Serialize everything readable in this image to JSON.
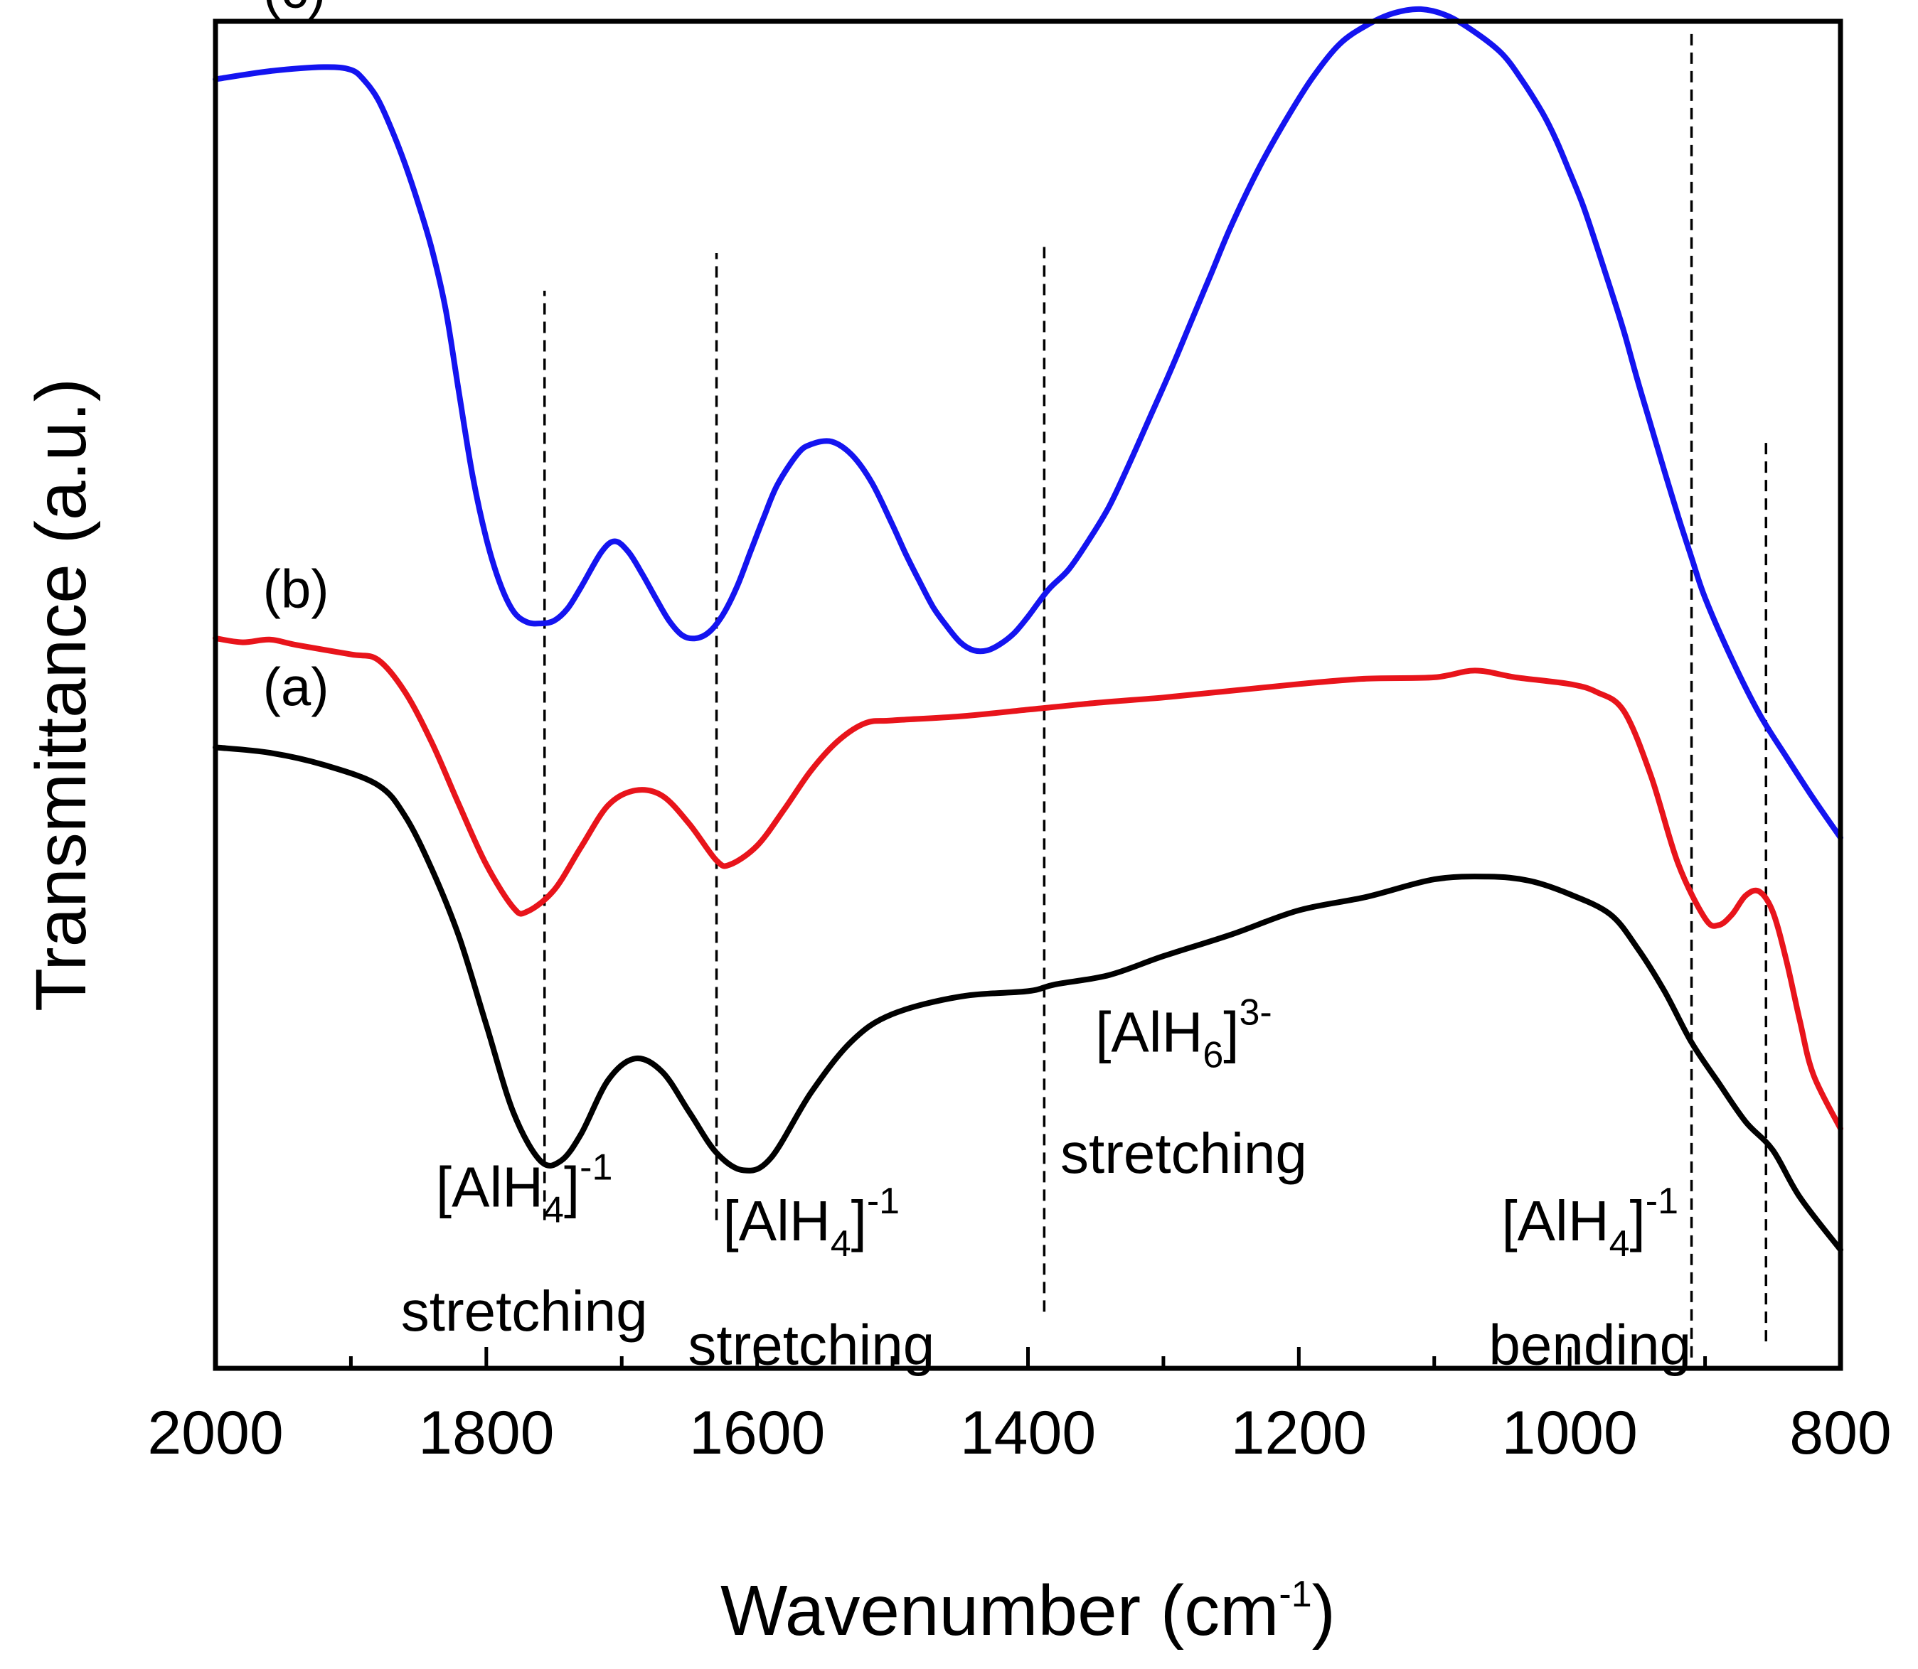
{
  "chart_data": {
    "type": "line",
    "title": "",
    "xlabel": "Wavenumber (cm",
    "xlabel_sup": "-1",
    "xlabel_close": ")",
    "ylabel": "Transmittance (a.u.)",
    "xlim": [
      2000,
      800
    ],
    "ylim": [
      0,
      100
    ],
    "x_ticks": [
      2000,
      1800,
      1600,
      1400,
      1200,
      1000,
      800
    ],
    "x_tick_labels": [
      "2000",
      "1800",
      "1600",
      "1400",
      "1200",
      "1000",
      "800"
    ],
    "x_minor_ticks": [
      1900,
      1700,
      1500,
      1300,
      1100,
      900
    ],
    "y_ticks_shown": false,
    "grid": false,
    "series": [
      {
        "name": "(a)",
        "color": "#000000",
        "x": [
          2000,
          1960,
          1920,
          1880,
          1860,
          1840,
          1820,
          1800,
          1780,
          1760,
          1745,
          1730,
          1710,
          1690,
          1670,
          1650,
          1630,
          1610,
          1590,
          1560,
          1530,
          1500,
          1450,
          1400,
          1380,
          1340,
          1300,
          1250,
          1200,
          1150,
          1100,
          1060,
          1030,
          1000,
          970,
          950,
          930,
          910,
          890,
          870,
          850,
          830,
          800
        ],
        "values": [
          46.1,
          45.7,
          44.8,
          43.3,
          41.0,
          37.0,
          32.0,
          25.5,
          19.0,
          15.4,
          15.4,
          17.4,
          21.4,
          23.0,
          22.0,
          19.0,
          16.0,
          14.7,
          15.6,
          20.5,
          24.3,
          26.3,
          27.6,
          28.0,
          28.5,
          29.2,
          30.6,
          32.2,
          34.0,
          35.0,
          36.3,
          36.5,
          36.2,
          35.2,
          33.7,
          31.2,
          28.0,
          24.2,
          21.2,
          18.3,
          16.2,
          12.7,
          8.8
        ]
      },
      {
        "name": "(b)",
        "color": "#e8141b",
        "x": [
          2000,
          1980,
          1960,
          1940,
          1900,
          1880,
          1860,
          1840,
          1820,
          1800,
          1780,
          1770,
          1750,
          1730,
          1710,
          1690,
          1670,
          1650,
          1630,
          1620,
          1600,
          1580,
          1560,
          1540,
          1520,
          1500,
          1450,
          1400,
          1350,
          1300,
          1250,
          1200,
          1150,
          1100,
          1070,
          1040,
          1000,
          980,
          960,
          940,
          920,
          900,
          890,
          880,
          870,
          860,
          850,
          840,
          830,
          820,
          800
        ],
        "values": [
          54.2,
          53.9,
          54.1,
          53.7,
          53.0,
          52.6,
          50.2,
          46.4,
          41.8,
          37.4,
          34.2,
          33.9,
          35.5,
          38.7,
          41.8,
          42.9,
          42.5,
          40.4,
          37.7,
          37.4,
          38.8,
          41.5,
          44.4,
          46.6,
          47.9,
          48.1,
          48.4,
          48.9,
          49.4,
          49.8,
          50.3,
          50.8,
          51.2,
          51.3,
          51.8,
          51.3,
          50.8,
          50.2,
          48.8,
          44.0,
          37.5,
          33.4,
          32.9,
          33.7,
          35.1,
          35.4,
          33.9,
          30.3,
          25.8,
          21.8,
          17.8
        ]
      },
      {
        "name": "(c)",
        "color": "#1414f0",
        "x": [
          2000,
          1960,
          1920,
          1900,
          1890,
          1880,
          1870,
          1860,
          1850,
          1840,
          1830,
          1820,
          1810,
          1800,
          1790,
          1780,
          1770,
          1760,
          1750,
          1740,
          1730,
          1715,
          1705,
          1695,
          1685,
          1675,
          1665,
          1655,
          1645,
          1635,
          1625,
          1615,
          1605,
          1595,
          1585,
          1570,
          1560,
          1545,
          1530,
          1515,
          1500,
          1490,
          1480,
          1470,
          1460,
          1450,
          1440,
          1430,
          1420,
          1410,
          1400,
          1385,
          1370,
          1355,
          1340,
          1325,
          1310,
          1295,
          1280,
          1265,
          1250,
          1230,
          1210,
          1190,
          1170,
          1150,
          1130,
          1110,
          1090,
          1070,
          1050,
          1035,
          1020,
          1010,
          1000,
          990,
          980,
          970,
          960,
          950,
          940,
          930,
          920,
          910,
          900,
          880,
          860,
          840,
          820,
          800
        ],
        "values": [
          95.7,
          96.3,
          96.6,
          96.4,
          95.6,
          94.2,
          92.0,
          89.4,
          86.4,
          83.0,
          78.6,
          72.3,
          66.2,
          61.6,
          58.3,
          56.2,
          55.4,
          55.3,
          55.5,
          56.4,
          58.0,
          60.6,
          61.4,
          60.6,
          59.0,
          57.2,
          55.5,
          54.4,
          54.2,
          54.7,
          56.0,
          58.0,
          60.6,
          63.2,
          65.6,
          67.9,
          68.6,
          68.8,
          67.8,
          65.7,
          62.6,
          60.4,
          58.4,
          56.5,
          55.1,
          53.9,
          53.3,
          53.3,
          53.8,
          54.6,
          55.8,
          57.8,
          59.3,
          61.5,
          64.0,
          67.2,
          70.6,
          74.0,
          77.6,
          81.2,
          84.8,
          89.0,
          92.6,
          95.8,
          98.3,
          99.7,
          100.6,
          100.9,
          100.4,
          99.2,
          97.6,
          95.6,
          93.2,
          91.2,
          88.8,
          86.3,
          83.3,
          80.2,
          77.0,
          73.4,
          70.0,
          66.6,
          63.3,
          60.2,
          57.2,
          52.6,
          48.6,
          45.4,
          42.3,
          39.4
        ]
      }
    ],
    "reference_lines": [
      {
        "x": 1757,
        "y_from": 11.0,
        "y_to": 80.0
      },
      {
        "x": 1630,
        "y_from": 11.0,
        "y_to": 82.8
      },
      {
        "x": 1388,
        "y_from": 4.2,
        "y_to": 83.5
      },
      {
        "x": 910,
        "y_from": 0.8,
        "y_to": 99.3
      },
      {
        "x": 855,
        "y_from": 2.0,
        "y_to": 68.8
      }
    ],
    "series_labels": [
      {
        "text": "(c)",
        "x": 1965,
        "y": 101.0
      },
      {
        "text": "(b)",
        "x": 1965,
        "y": 56.5
      },
      {
        "text": "(a)",
        "x": 1965,
        "y": 49.2
      }
    ],
    "annotations": [
      {
        "ion": "[AlH",
        "sub": "4",
        "close": "]",
        "sup": "-1",
        "mode": "stretching",
        "x": 1772,
        "y_ion": 12.0,
        "y_mode": 2.8
      },
      {
        "ion": "[AlH",
        "sub": "4",
        "close": "]",
        "sup": "-1",
        "mode": "stretching",
        "x": 1560,
        "y_ion": 9.5,
        "y_mode": 0.3
      },
      {
        "ion": "[AlH",
        "sub": "6",
        "close": "]",
        "sup": "3-",
        "mode": "stretching",
        "x": 1285,
        "y_ion": 23.5,
        "y_mode": 14.5
      },
      {
        "ion": "[AlH",
        "sub": "4",
        "close": "]",
        "sup": "-1",
        "mode": "bending",
        "x": 985,
        "y_ion": 9.5,
        "y_mode": 0.3
      }
    ]
  }
}
